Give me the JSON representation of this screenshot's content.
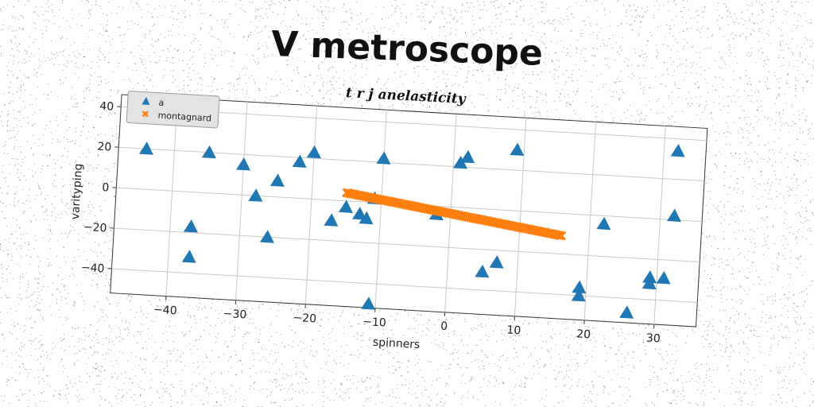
{
  "title": "V metroscope",
  "chart_data": {
    "type": "scatter",
    "title": "t r j anelasticity",
    "xlabel": "spinners",
    "ylabel": "varityping",
    "xlim": [
      -48,
      36
    ],
    "ylim": [
      -52,
      46
    ],
    "xticks": [
      -40,
      -30,
      -20,
      -10,
      0,
      10,
      20,
      30
    ],
    "yticks": [
      -40,
      -20,
      0,
      20,
      40
    ],
    "xtick_labels": [
      "−40",
      "−30",
      "−20",
      "−10",
      "0",
      "10",
      "20",
      "30"
    ],
    "ytick_labels": [
      "−40",
      "−20",
      "0",
      "20",
      "40"
    ],
    "grid": true,
    "legend_position": "top-left",
    "series": [
      {
        "name": "a",
        "marker": "triangle",
        "color": "#1f77b4",
        "points": [
          [
            -44,
            20
          ],
          [
            -35,
            20
          ],
          [
            -30,
            15
          ],
          [
            -37,
            -17
          ],
          [
            -37,
            -32
          ],
          [
            -28,
            0
          ],
          [
            -26,
            -20
          ],
          [
            -25,
            8
          ],
          [
            -22,
            18
          ],
          [
            -20,
            23
          ],
          [
            -17,
            -10
          ],
          [
            -15,
            -3
          ],
          [
            -13,
            -6
          ],
          [
            -12,
            -8
          ],
          [
            -11,
            2
          ],
          [
            -10,
            22
          ],
          [
            -11,
            -50
          ],
          [
            -2,
            -4
          ],
          [
            1,
            22
          ],
          [
            2,
            25
          ],
          [
            9,
            30
          ],
          [
            5,
            -31
          ],
          [
            7,
            -26
          ],
          [
            19,
            -36
          ],
          [
            19,
            -40
          ],
          [
            22,
            -4
          ],
          [
            26,
            -47
          ],
          [
            29,
            -29
          ],
          [
            29,
            -32
          ],
          [
            31,
            -29
          ],
          [
            32,
            2
          ],
          [
            32,
            34
          ]
        ]
      },
      {
        "name": "montagnard",
        "marker": "x",
        "color": "#ff7f0e",
        "x_range": [
          -15,
          16
        ],
        "y_range": [
          4,
          -11
        ],
        "count": 110
      }
    ]
  }
}
